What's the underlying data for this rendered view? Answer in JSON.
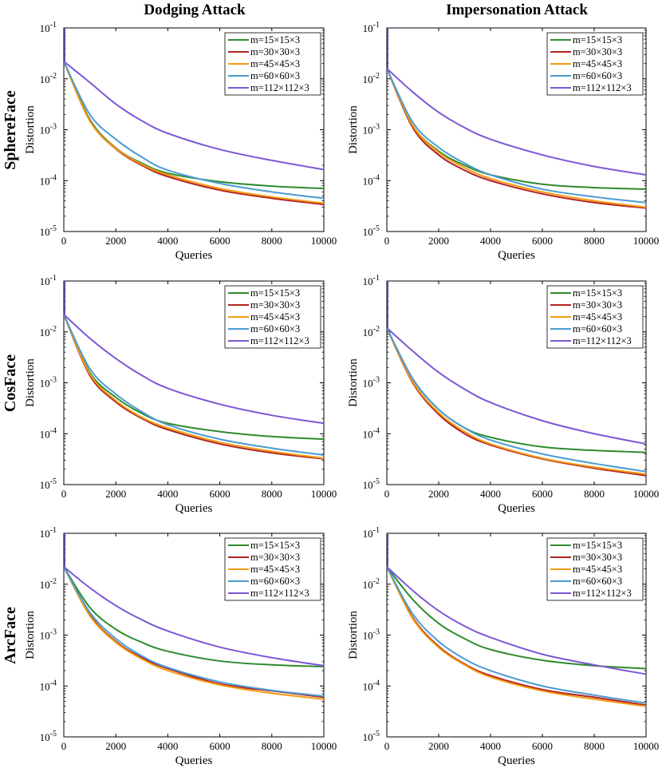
{
  "column_titles": [
    "Dodging Attack",
    "Impersonation Attack"
  ],
  "row_titles": [
    "SphereFace",
    "CosFace",
    "ArcFace"
  ],
  "series_styles": [
    {
      "name": "m=15×15×3",
      "color": "#2e8b2e"
    },
    {
      "name": "m=30×30×3",
      "color": "#b22222"
    },
    {
      "name": "m=45×45×3",
      "color": "#f39c12"
    },
    {
      "name": "m=60×60×3",
      "color": "#4b9bd1"
    },
    {
      "name": "m=112×112×3",
      "color": "#7e57d6"
    }
  ],
  "chart_data": [
    {
      "type": "line",
      "panel": "SphereFace / Dodging Attack",
      "xlabel": "Queries",
      "ylabel": "Distortion",
      "xlim": [
        0,
        10000
      ],
      "ylim": [
        1e-05,
        0.1
      ],
      "yscale": "log",
      "x_ticks": [
        "0",
        "2000",
        "4000",
        "6000",
        "8000",
        "10000"
      ],
      "y_ticks": [
        "10^-5",
        "10^-4",
        "10^-3",
        "10^-2",
        "10^-1"
      ],
      "legend_position": "top-right",
      "x": [
        0,
        1000,
        2000,
        3000,
        4000,
        6000,
        8000,
        10000
      ],
      "series": [
        {
          "name": "m=15×15×3",
          "values": [
            0.022,
            0.0016,
            0.00044,
            0.00022,
            0.00014,
            9.5e-05,
            7.8e-05,
            7e-05
          ]
        },
        {
          "name": "m=30×30×3",
          "values": [
            0.022,
            0.0015,
            0.00042,
            0.0002,
            0.00012,
            6.5e-05,
            4.5e-05,
            3.4e-05
          ]
        },
        {
          "name": "m=45×45×3",
          "values": [
            0.022,
            0.0015,
            0.00043,
            0.00021,
            0.00013,
            7e-05,
            4.8e-05,
            3.6e-05
          ]
        },
        {
          "name": "m=60×60×3",
          "values": [
            0.022,
            0.002,
            0.00065,
            0.00029,
            0.00016,
            8.8e-05,
            6e-05,
            4.5e-05
          ]
        },
        {
          "name": "m=112×112×3",
          "values": [
            0.022,
            0.0085,
            0.0032,
            0.0015,
            0.00085,
            0.00041,
            0.00025,
            0.000165
          ]
        }
      ]
    },
    {
      "type": "line",
      "panel": "SphereFace / Impersonation Attack",
      "xlabel": "Queries",
      "ylabel": "Distortion",
      "xlim": [
        0,
        10000
      ],
      "ylim": [
        1e-05,
        0.1
      ],
      "yscale": "log",
      "x_ticks": [
        "0",
        "2000",
        "4000",
        "6000",
        "8000",
        "10000"
      ],
      "y_ticks": [
        "10^-5",
        "10^-4",
        "10^-3",
        "10^-2",
        "10^-1"
      ],
      "legend_position": "top-right",
      "x": [
        0,
        1000,
        2000,
        3000,
        4000,
        6000,
        8000,
        10000
      ],
      "series": [
        {
          "name": "m=15×15×3",
          "values": [
            0.016,
            0.0012,
            0.00038,
            0.0002,
            0.00013,
            8.5e-05,
            7.3e-05,
            6.8e-05
          ]
        },
        {
          "name": "m=30×30×3",
          "values": [
            0.016,
            0.0011,
            0.00032,
            0.00016,
            0.0001,
            5.5e-05,
            3.7e-05,
            2.9e-05
          ]
        },
        {
          "name": "m=45×45×3",
          "values": [
            0.016,
            0.0012,
            0.00036,
            0.00018,
            0.00011,
            6e-05,
            4e-05,
            3e-05
          ]
        },
        {
          "name": "m=60×60×3",
          "values": [
            0.016,
            0.0014,
            0.00045,
            0.00022,
            0.00013,
            6.8e-05,
            4.8e-05,
            3.7e-05
          ]
        },
        {
          "name": "m=112×112×3",
          "values": [
            0.016,
            0.0055,
            0.0022,
            0.0011,
            0.00065,
            0.00032,
            0.00019,
            0.00013
          ]
        }
      ]
    },
    {
      "type": "line",
      "panel": "CosFace / Dodging Attack",
      "xlabel": "Queries",
      "ylabel": "Distortion",
      "xlim": [
        0,
        10000
      ],
      "ylim": [
        1e-05,
        0.1
      ],
      "yscale": "log",
      "x_ticks": [
        "0",
        "2000",
        "4000",
        "6000",
        "8000",
        "10000"
      ],
      "y_ticks": [
        "10^-5",
        "10^-4",
        "10^-3",
        "10^-2",
        "10^-1"
      ],
      "legend_position": "top-right",
      "x": [
        0,
        1000,
        2000,
        3000,
        4000,
        6000,
        8000,
        10000
      ],
      "series": [
        {
          "name": "m=15×15×3",
          "values": [
            0.022,
            0.0016,
            0.00052,
            0.00025,
            0.00016,
            0.00011,
            8.8e-05,
            7.8e-05
          ]
        },
        {
          "name": "m=30×30×3",
          "values": [
            0.022,
            0.0014,
            0.00042,
            0.0002,
            0.00012,
            6.3e-05,
            4.2e-05,
            3.2e-05
          ]
        },
        {
          "name": "m=45×45×3",
          "values": [
            0.022,
            0.0015,
            0.00045,
            0.00021,
            0.00013,
            6.8e-05,
            4.5e-05,
            3.3e-05
          ]
        },
        {
          "name": "m=60×60×3",
          "values": [
            0.022,
            0.0019,
            0.0006,
            0.00027,
            0.00015,
            7.8e-05,
            5.2e-05,
            3.8e-05
          ]
        },
        {
          "name": "m=112×112×3",
          "values": [
            0.022,
            0.0075,
            0.003,
            0.0014,
            0.00078,
            0.00038,
            0.00023,
            0.00016
          ]
        }
      ]
    },
    {
      "type": "line",
      "panel": "CosFace / Impersonation Attack",
      "xlabel": "Queries",
      "ylabel": "Distortion",
      "xlim": [
        0,
        10000
      ],
      "ylim": [
        1e-05,
        0.1
      ],
      "yscale": "log",
      "x_ticks": [
        "0",
        "2000",
        "4000",
        "6000",
        "8000",
        "10000"
      ],
      "y_ticks": [
        "10^-5",
        "10^-4",
        "10^-3",
        "10^-2",
        "10^-1"
      ],
      "legend_position": "top-right",
      "x": [
        0,
        1000,
        2000,
        3000,
        4000,
        6000,
        8000,
        10000
      ],
      "series": [
        {
          "name": "m=15×15×3",
          "values": [
            0.012,
            0.0012,
            0.0003,
            0.00013,
            8.5e-05,
            5.5e-05,
            4.7e-05,
            4.3e-05
          ]
        },
        {
          "name": "m=30×30×3",
          "values": [
            0.012,
            0.001,
            0.00024,
            0.0001,
            6e-05,
            3.2e-05,
            2.1e-05,
            1.5e-05
          ]
        },
        {
          "name": "m=45×45×3",
          "values": [
            0.012,
            0.00105,
            0.00026,
            0.00011,
            6.3e-05,
            3.3e-05,
            2.2e-05,
            1.6e-05
          ]
        },
        {
          "name": "m=60×60×3",
          "values": [
            0.012,
            0.0012,
            0.0003,
            0.00013,
            7.5e-05,
            4e-05,
            2.6e-05,
            1.8e-05
          ]
        },
        {
          "name": "m=112×112×3",
          "values": [
            0.012,
            0.0042,
            0.0016,
            0.00075,
            0.00041,
            0.00018,
            0.0001,
            6.3e-05
          ]
        }
      ]
    },
    {
      "type": "line",
      "panel": "ArcFace / Dodging Attack",
      "xlabel": "Queries",
      "ylabel": "Distortion",
      "xlim": [
        0,
        10000
      ],
      "ylim": [
        1e-05,
        0.1
      ],
      "yscale": "log",
      "x_ticks": [
        "0",
        "2000",
        "4000",
        "6000",
        "8000",
        "10000"
      ],
      "y_ticks": [
        "10^-5",
        "10^-4",
        "10^-3",
        "10^-2",
        "10^-1"
      ],
      "legend_position": "top-right",
      "x": [
        0,
        1000,
        2000,
        3000,
        4000,
        6000,
        8000,
        10000
      ],
      "series": [
        {
          "name": "m=15×15×3",
          "values": [
            0.022,
            0.0035,
            0.0013,
            0.00072,
            0.00048,
            0.00031,
            0.00026,
            0.00024
          ]
        },
        {
          "name": "m=30×30×3",
          "values": [
            0.022,
            0.0025,
            0.00075,
            0.00036,
            0.00022,
            0.00011,
            8e-05,
            6e-05
          ]
        },
        {
          "name": "m=45×45×3",
          "values": [
            0.022,
            0.0024,
            0.00072,
            0.00034,
            0.0002,
            0.000105,
            7.2e-05,
            5.5e-05
          ]
        },
        {
          "name": "m=60×60×3",
          "values": [
            0.022,
            0.0028,
            0.00085,
            0.00039,
            0.00023,
            0.00012,
            8.2e-05,
            6.3e-05
          ]
        },
        {
          "name": "m=112×112×3",
          "values": [
            0.022,
            0.0085,
            0.0038,
            0.002,
            0.0012,
            0.00058,
            0.00036,
            0.00025
          ]
        }
      ]
    },
    {
      "type": "line",
      "panel": "ArcFace / Impersonation Attack",
      "xlabel": "Queries",
      "ylabel": "Distortion",
      "xlim": [
        0,
        10000
      ],
      "ylim": [
        1e-05,
        0.1
      ],
      "yscale": "log",
      "x_ticks": [
        "0",
        "2000",
        "4000",
        "6000",
        "8000",
        "10000"
      ],
      "y_ticks": [
        "10^-5",
        "10^-4",
        "10^-3",
        "10^-2",
        "10^-1"
      ],
      "legend_position": "top-right",
      "x": [
        0,
        1000,
        2000,
        3000,
        4000,
        6000,
        8000,
        10000
      ],
      "series": [
        {
          "name": "m=15×15×3",
          "values": [
            0.022,
            0.005,
            0.0017,
            0.00085,
            0.00052,
            0.00032,
            0.00025,
            0.00022
          ]
        },
        {
          "name": "m=30×30×3",
          "values": [
            0.022,
            0.0022,
            0.0006,
            0.00027,
            0.00016,
            8.5e-05,
            6e-05,
            4.2e-05
          ]
        },
        {
          "name": "m=45×45×3",
          "values": [
            0.022,
            0.0021,
            0.00057,
            0.00026,
            0.00015,
            8e-05,
            5.5e-05,
            4e-05
          ]
        },
        {
          "name": "m=60×60×3",
          "values": [
            0.022,
            0.0026,
            0.00075,
            0.00034,
            0.0002,
            0.0001,
            6.6e-05,
            4.6e-05
          ]
        },
        {
          "name": "m=112×112×3",
          "values": [
            0.022,
            0.0075,
            0.003,
            0.0015,
            0.0009,
            0.00042,
            0.00026,
            0.00017
          ]
        }
      ]
    }
  ]
}
